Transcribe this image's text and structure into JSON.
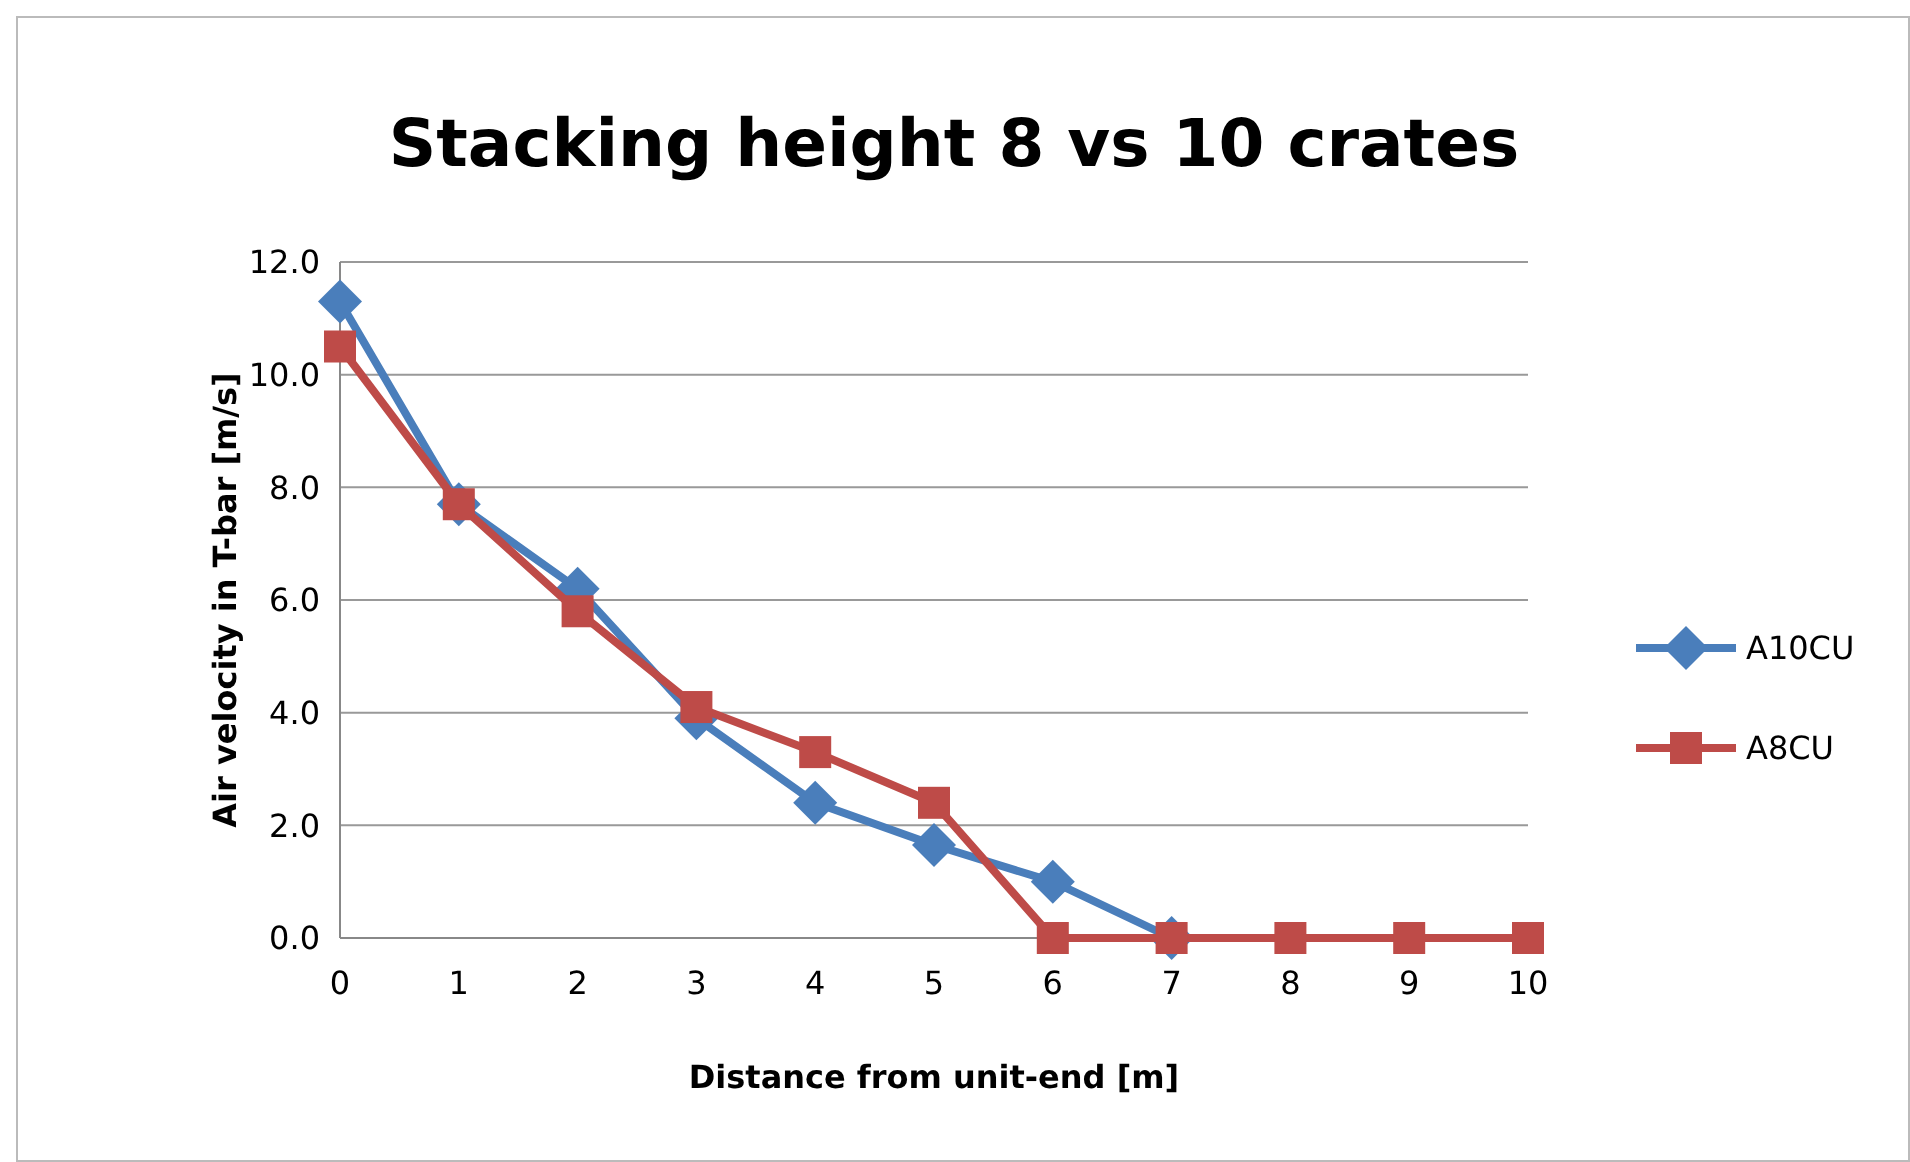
{
  "chart_data": {
    "type": "line",
    "title": "Stacking height 8 vs 10 crates",
    "xlabel": "Distance from unit-end [m]",
    "ylabel": "Air velocity in T-bar [m/s]",
    "x": [
      0,
      1,
      2,
      3,
      4,
      5,
      6,
      7,
      8,
      9,
      10
    ],
    "xlim": [
      0,
      10
    ],
    "xticks": [
      0,
      1,
      2,
      3,
      4,
      5,
      6,
      7,
      8,
      9,
      10
    ],
    "ylim": [
      0,
      12
    ],
    "yticks": [
      {
        "value": 0,
        "label": "0.0"
      },
      {
        "value": 2,
        "label": "2.0"
      },
      {
        "value": 4,
        "label": "4.0"
      },
      {
        "value": 6,
        "label": "6.0"
      },
      {
        "value": 8,
        "label": "8.0"
      },
      {
        "value": 10,
        "label": "10.0"
      },
      {
        "value": 12,
        "label": "12.0"
      }
    ],
    "grid": "y",
    "legend": "right",
    "series": [
      {
        "name": "A10CU",
        "color": "#4a7ebb",
        "marker": "diamond",
        "values": [
          11.3,
          7.7,
          6.2,
          3.9,
          2.4,
          1.65,
          1.0,
          0,
          null,
          null,
          null
        ]
      },
      {
        "name": "A8CU",
        "color": "#be4b48",
        "marker": "square",
        "values": [
          10.5,
          7.7,
          5.8,
          4.1,
          3.3,
          2.4,
          0,
          0,
          0,
          0,
          0
        ]
      }
    ]
  }
}
